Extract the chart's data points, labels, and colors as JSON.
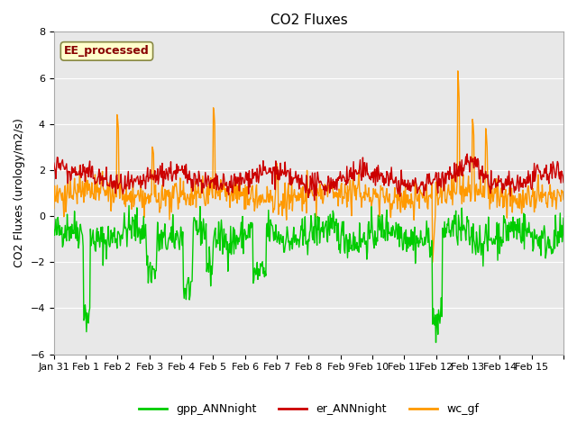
{
  "title": "CO2 Fluxes",
  "ylabel": "CO2 Fluxes (urology/m2/s)",
  "ylim": [
    -6,
    8
  ],
  "yticks": [
    -6,
    -4,
    -2,
    0,
    2,
    4,
    6,
    8
  ],
  "xlim_days": [
    0,
    16
  ],
  "n_days": 16,
  "pts_per_day": 48,
  "plot_bg_color": "#e8e8e8",
  "grid_color": "#ffffff",
  "gpp_color": "#00cc00",
  "er_color": "#cc0000",
  "wc_color": "#ff9900",
  "annotation_text": "EE_processed",
  "annotation_bg": "#ffffcc",
  "annotation_border": "#888844",
  "annotation_text_color": "#880000",
  "legend_labels": [
    "gpp_ANNnight",
    "er_ANNnight",
    "wc_gf"
  ],
  "xtick_labels": [
    "Jan 31",
    "Feb 1",
    "Feb 2",
    "Feb 3",
    "Feb 4",
    "Feb 5",
    "Feb 6",
    "Feb 7",
    "Feb 8",
    "Feb 9",
    "Feb 10",
    "Feb 11",
    "Feb 12",
    "Feb 13",
    "Feb 14",
    "Feb 15",
    ""
  ],
  "linewidth": 1.0
}
